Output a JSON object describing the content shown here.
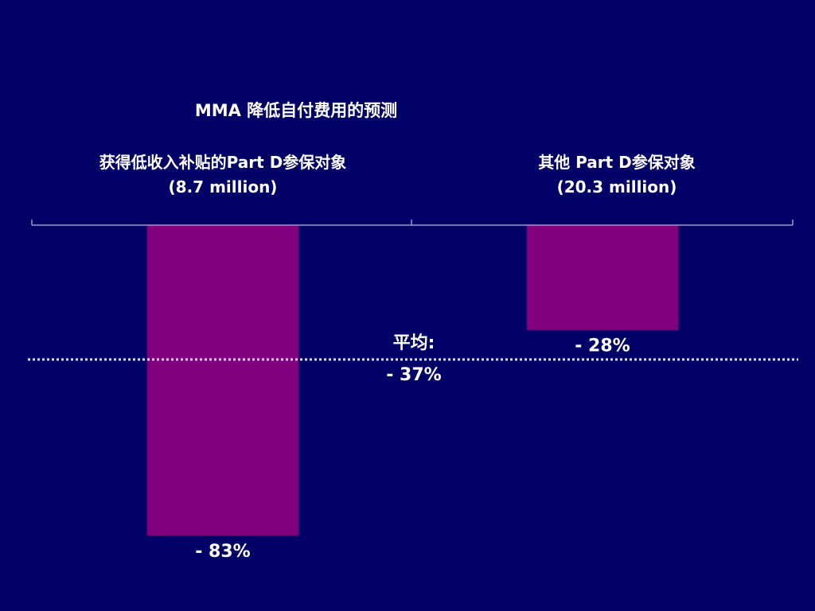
{
  "chart_data": {
    "type": "bar",
    "title": "MMA 降低自付费用的预测",
    "categories": [
      {
        "label": "获得低收入补贴的Part D参保对象",
        "sublabel": "(8.7 million)"
      },
      {
        "label": "其他 Part D参保对象",
        "sublabel": "(20.3 million)"
      }
    ],
    "values": [
      -83,
      -28
    ],
    "value_labels": [
      "- 83%",
      "- 28%"
    ],
    "average": {
      "label": "平均:",
      "value": -37,
      "value_label": "- 37%"
    },
    "ylim": [
      -100,
      0
    ],
    "bar_color": "#800080",
    "grid": false
  }
}
